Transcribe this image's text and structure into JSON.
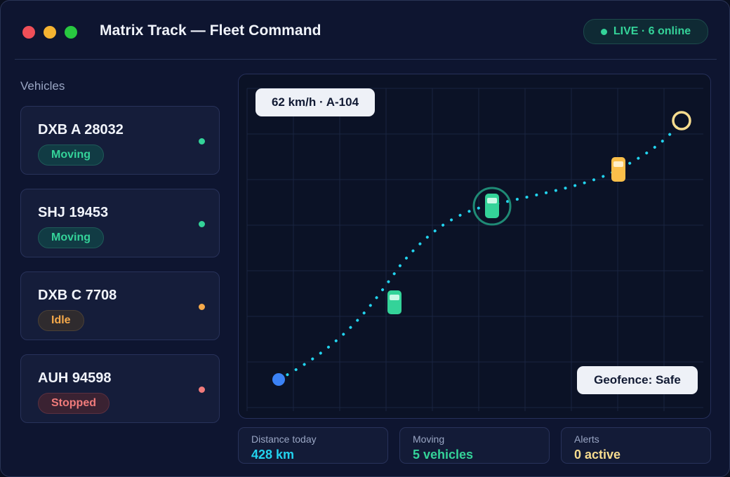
{
  "window": {
    "title": "Matrix Track — Fleet Command",
    "live_badge": "LIVE · 6 online"
  },
  "sidebar": {
    "heading": "Vehicles",
    "vehicles": [
      {
        "plate": "DXB A 28032",
        "status": "Moving",
        "status_color": "#34d399"
      },
      {
        "plate": "SHJ 19453",
        "status": "Moving",
        "status_color": "#34d399"
      },
      {
        "plate": "DXB C 7708",
        "status": "Idle",
        "status_color": "#f5a94a"
      },
      {
        "plate": "AUH 94598",
        "status": "Stopped",
        "status_color": "#f17b7b"
      }
    ]
  },
  "map": {
    "speed_chip": "62 km/h · A-104",
    "geofence_chip": "Geofence: Safe",
    "colors": {
      "route": "#22d3ee",
      "start": "#3b82f6",
      "destination": "#f7dc8f",
      "vehicle_moving": "#34d399",
      "vehicle_idle": "#fbbf4a",
      "selection_ring": "#1f8a75"
    },
    "icons": [
      "start-marker-icon",
      "destination-marker-icon",
      "car-icon"
    ]
  },
  "stats": [
    {
      "label": "Distance today",
      "value": "428 km",
      "color": "#22d3ee"
    },
    {
      "label": "Moving",
      "value": "5 vehicles",
      "color": "#34d399"
    },
    {
      "label": "Alerts",
      "value": "0 active",
      "color": "#f7dc8f"
    }
  ]
}
